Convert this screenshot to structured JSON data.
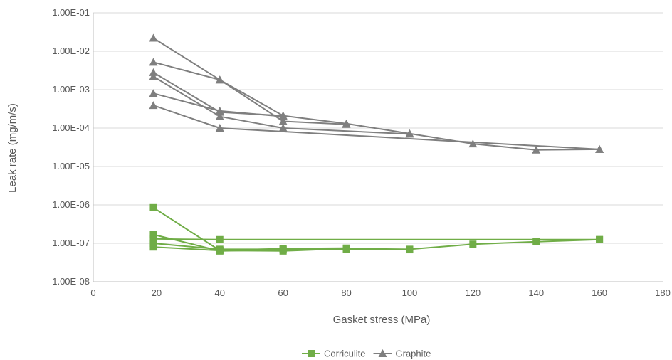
{
  "chart_data": {
    "type": "line",
    "xlabel": "Gasket stress (MPa)",
    "ylabel": "Leak rate (mg/m/s)",
    "xlim": [
      0,
      180
    ],
    "xticks": [
      0,
      20,
      40,
      60,
      80,
      100,
      120,
      140,
      160,
      180
    ],
    "ylim": [
      1e-08,
      0.1
    ],
    "yscale": "log",
    "yticks": [
      1e-08,
      1e-07,
      1e-06,
      1e-05,
      0.0001,
      0.001,
      0.01,
      0.1
    ],
    "yticklabels": [
      "1.00E-08",
      "1.00E-07",
      "1.00E-06",
      "1.00E-05",
      "1.00E-04",
      "1.00E-03",
      "1.00E-02",
      "1.00E-01"
    ],
    "grid": "horizontal",
    "legend_position": "bottom-center",
    "legend": [
      {
        "label": "Corriculite",
        "marker": "square",
        "color": "#70AD47"
      },
      {
        "label": "Graphite",
        "marker": "triangle",
        "color": "#7F7F7F"
      }
    ],
    "series": [
      {
        "group": "Corriculite",
        "marker": "square",
        "color": "#70AD47",
        "points": [
          [
            19,
            8.5e-07
          ],
          [
            40,
            6.5e-08
          ],
          [
            60,
            6.3e-08
          ],
          [
            80,
            7.3e-08
          ],
          [
            100,
            7e-08
          ],
          [
            120,
            9.5e-08
          ],
          [
            140,
            1.1e-07
          ],
          [
            160,
            1.25e-07
          ]
        ]
      },
      {
        "group": "Corriculite",
        "marker": "square",
        "color": "#70AD47",
        "points": [
          [
            19,
            1.7e-07
          ],
          [
            40,
            6.3e-08
          ],
          [
            60,
            6.8e-08
          ],
          [
            80,
            7e-08
          ],
          [
            100,
            6.8e-08
          ]
        ]
      },
      {
        "group": "Corriculite",
        "marker": "square",
        "color": "#70AD47",
        "points": [
          [
            19,
            1.3e-07
          ],
          [
            40,
            1.25e-07
          ],
          [
            160,
            1.25e-07
          ]
        ]
      },
      {
        "group": "Corriculite",
        "marker": "square",
        "color": "#70AD47",
        "points": [
          [
            19,
            1e-07
          ],
          [
            40,
            7e-08
          ],
          [
            60,
            7e-08
          ],
          [
            80,
            7.3e-08
          ]
        ]
      },
      {
        "group": "Corriculite",
        "marker": "square",
        "color": "#70AD47",
        "points": [
          [
            19,
            8e-08
          ],
          [
            40,
            6.5e-08
          ],
          [
            60,
            7.3e-08
          ],
          [
            80,
            7.5e-08
          ]
        ]
      },
      {
        "group": "Graphite",
        "marker": "triangle",
        "color": "#7F7F7F",
        "points": [
          [
            19,
            0.022
          ],
          [
            40,
            0.0018
          ],
          [
            60,
            0.00021
          ],
          [
            80,
            0.00013
          ],
          [
            100,
            7.2e-05
          ],
          [
            120,
            3.9e-05
          ],
          [
            140,
            2.7e-05
          ],
          [
            160,
            2.8e-05
          ]
        ]
      },
      {
        "group": "Graphite",
        "marker": "triangle",
        "color": "#7F7F7F",
        "points": [
          [
            19,
            0.0052
          ],
          [
            40,
            0.0018
          ],
          [
            60,
            0.00015
          ],
          [
            80,
            0.000125
          ]
        ]
      },
      {
        "group": "Graphite",
        "marker": "triangle",
        "color": "#7F7F7F",
        "points": [
          [
            19,
            0.0028
          ],
          [
            40,
            0.00026
          ],
          [
            60,
            0.00021
          ]
        ]
      },
      {
        "group": "Graphite",
        "marker": "triangle",
        "color": "#7F7F7F",
        "points": [
          [
            19,
            0.0022
          ],
          [
            40,
            0.0002
          ],
          [
            60,
            0.0001
          ],
          [
            100,
            7e-05
          ]
        ]
      },
      {
        "group": "Graphite",
        "marker": "triangle",
        "color": "#7F7F7F",
        "points": [
          [
            19,
            0.0008
          ],
          [
            40,
            0.00028
          ],
          [
            60,
            0.0002
          ]
        ]
      },
      {
        "group": "Graphite",
        "marker": "triangle",
        "color": "#7F7F7F",
        "points": [
          [
            19,
            0.00039
          ],
          [
            40,
            0.0001
          ],
          [
            160,
            2.8e-05
          ]
        ]
      }
    ]
  }
}
